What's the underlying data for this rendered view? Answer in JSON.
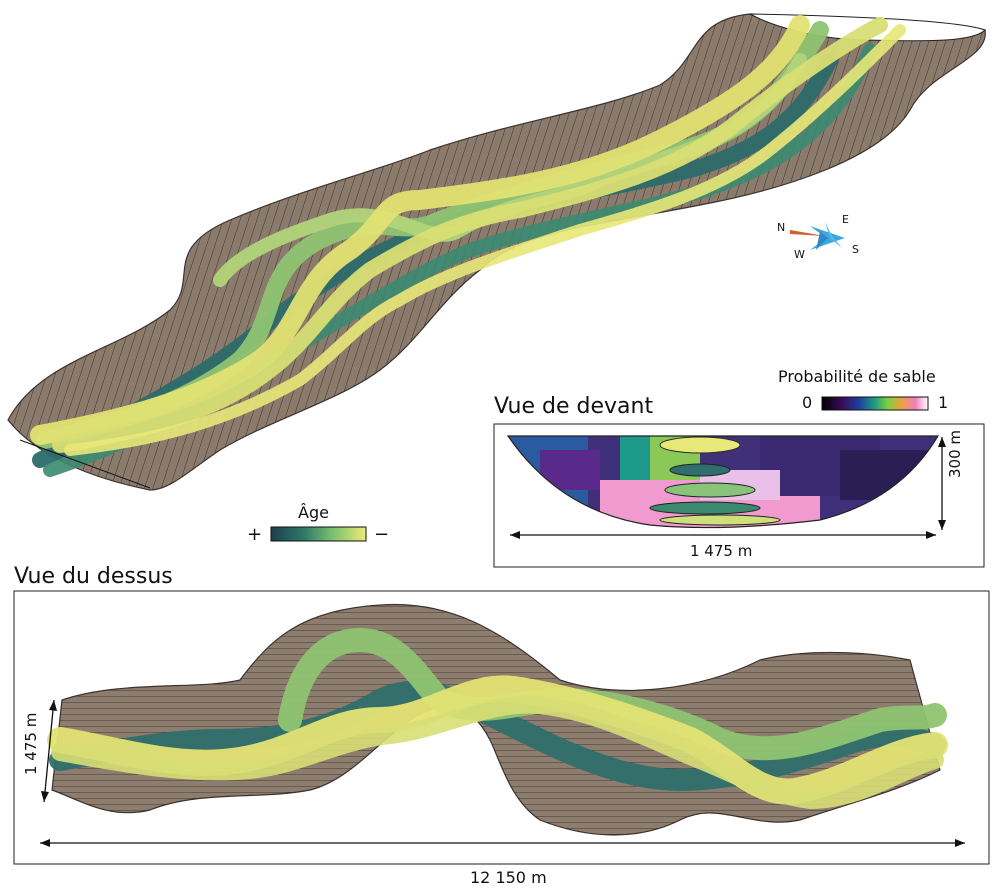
{
  "labels": {
    "front_view_title": "Vue de devant",
    "top_view_title": "Vue du dessus",
    "sand_probability_title": "Probabilité de sable",
    "sand_min": "0",
    "sand_max": "1",
    "age_title": "Âge",
    "age_plus": "+",
    "age_minus": "−",
    "front_width": "1 475 m",
    "front_depth": "300 m",
    "top_width": "1 475 m",
    "top_length": "12 150 m"
  },
  "compass": {
    "n": "N",
    "e": "E",
    "w": "W",
    "s": "S"
  },
  "colors": {
    "substrate": "#8a7a6c",
    "substrate_dark": "#5c5048",
    "age_old": "#22505a",
    "age_mid": "#5aa56e",
    "age_young": "#e3e374",
    "channel_outline": "#3e4a2c"
  }
}
